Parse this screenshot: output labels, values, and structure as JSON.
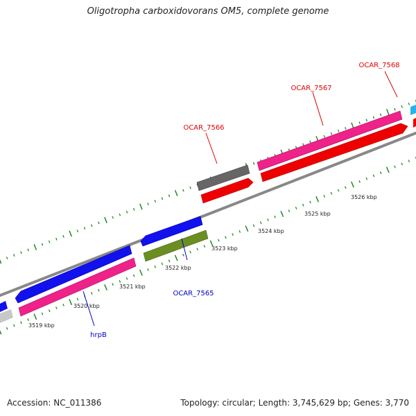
{
  "title": "Oligotropha carboxidovorans OM5, complete genome",
  "footer": {
    "accession": "Accession: NC_011386",
    "summary": "Topology: circular; Length: 3,745,629 bp; Genes: 3,770"
  },
  "scale_labels": [
    "3519 kbp",
    "3520 kbp",
    "3521 kbp",
    "3522 kbp",
    "3523 kbp",
    "3524 kbp",
    "3525 kbp",
    "3526 kbp"
  ],
  "gene_labels": [
    {
      "text": "OCAR_7568",
      "color": "#dd0000"
    },
    {
      "text": "OCAR_7567",
      "color": "#dd0000"
    },
    {
      "text": "OCAR_7566",
      "color": "#dd0000"
    },
    {
      "text": "OCAR_7565",
      "color": "#0000cc"
    },
    {
      "text": "hrpB",
      "color": "#0000cc"
    }
  ],
  "colors": {
    "forward_cds": "#ee2288",
    "reverse_cds": "#1111ee",
    "rna_feature": "#ee0000",
    "gray_feature": "#666666",
    "olive_feature": "#6b8e23",
    "cyan_feature": "#22b4ee",
    "backbone": "#888888",
    "tick_marks": "#228822"
  }
}
